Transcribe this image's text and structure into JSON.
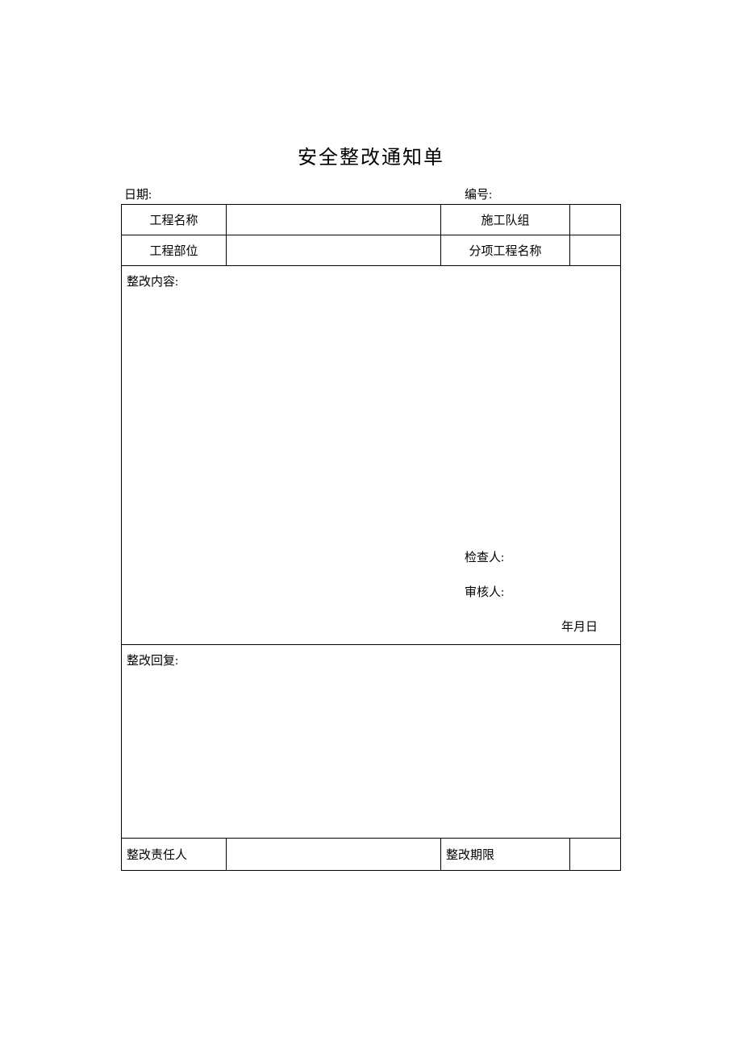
{
  "title": "安全整改通知单",
  "header": {
    "date_label": "日期:",
    "number_label": "编号:"
  },
  "info_rows": [
    {
      "label1": "工程名称",
      "value1": "",
      "label2": "施工队组",
      "value2": ""
    },
    {
      "label1": "工程部位",
      "value1": "",
      "label2": "分项工程名称",
      "value2": ""
    }
  ],
  "content": {
    "label": "整改内容:",
    "inspector_label": "检查人:",
    "reviewer_label": "审核人:",
    "date_text": "年月日"
  },
  "reply": {
    "label": "整改回复:"
  },
  "bottom": {
    "responsible_label": "整改责任人",
    "responsible_value": "",
    "deadline_label": "整改期限",
    "deadline_value": ""
  },
  "styling": {
    "background_color": "#ffffff",
    "border_color": "#000000",
    "text_color": "#000000",
    "title_fontsize": 24,
    "body_fontsize": 15,
    "font_family": "SimSun"
  }
}
